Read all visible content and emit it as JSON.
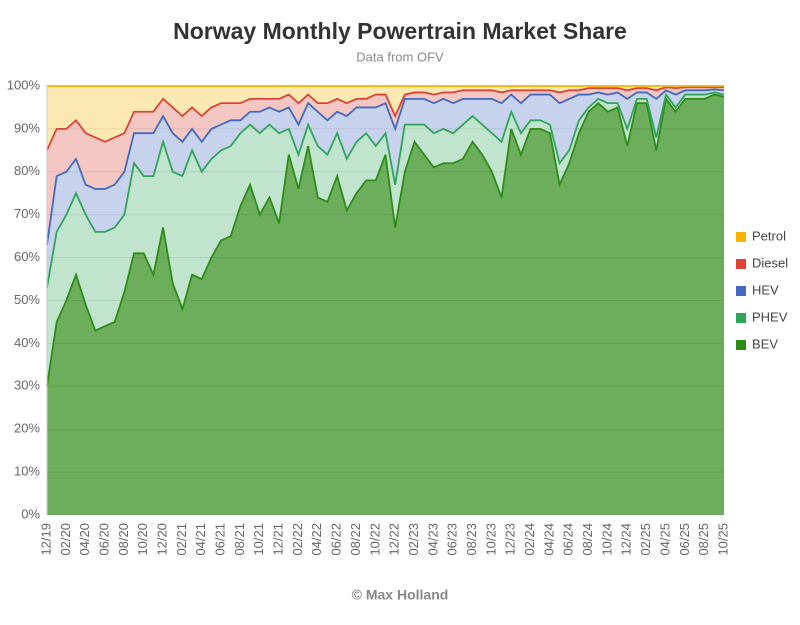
{
  "chart_data": {
    "type": "stacked-area",
    "title": "Norway Monthly Powertrain Market Share",
    "subtitle": "Data from OFV",
    "footer": "© Max Holland",
    "categories": [
      "12/19",
      null,
      "02/20",
      null,
      "04/20",
      null,
      "06/20",
      null,
      "08/20",
      null,
      "10/20",
      null,
      "12/20",
      null,
      "02/21",
      null,
      "04/21",
      null,
      "06/21",
      null,
      "08/21",
      null,
      "10/21",
      null,
      "12/21",
      null,
      "02/22",
      null,
      "04/22",
      null,
      "06/22",
      null,
      "08/22",
      null,
      "10/22",
      null,
      "12/22",
      null,
      "02/23",
      null,
      "04/23",
      null,
      "06/23",
      null,
      "08/23",
      null,
      "10/23",
      null,
      "12/23",
      null,
      "02/24",
      null,
      "04/24",
      null,
      "06/24",
      null,
      "08/24",
      null,
      "10/24",
      null,
      "12/24",
      null,
      "02/25",
      null,
      "04/25",
      null,
      "06/25",
      null,
      "08/25",
      null,
      "10/25"
    ],
    "series": [
      {
        "name": "Petrol",
        "color": "#f4b400",
        "values": [
          15,
          10,
          10,
          8,
          11,
          12,
          13,
          12,
          11,
          6,
          6,
          6,
          3,
          5,
          7,
          5,
          7,
          5,
          4,
          4,
          4,
          3,
          3,
          3,
          3,
          2,
          4,
          2,
          4,
          4,
          3,
          4,
          3,
          3,
          2,
          2,
          7,
          2,
          1.5,
          1.5,
          2,
          1.5,
          1.5,
          1,
          1,
          1,
          1,
          1.5,
          1,
          1,
          1,
          1,
          1,
          1.5,
          1,
          1,
          0.5,
          0.5,
          0.5,
          0.5,
          1,
          0.5,
          0.5,
          1,
          0.3,
          0.5,
          0.3,
          0.3,
          0.3,
          0.3,
          0.3
        ]
      },
      {
        "name": "Diesel",
        "color": "#db4437",
        "values": [
          22,
          11,
          10,
          9,
          12,
          12,
          11,
          11,
          9,
          5,
          5,
          5,
          4,
          6,
          6,
          5,
          6,
          5,
          5,
          4,
          4,
          3,
          3,
          2,
          3,
          3,
          5,
          2,
          2,
          4,
          3,
          3,
          2,
          2,
          3,
          2,
          3,
          1,
          1.5,
          1.5,
          2,
          1.5,
          2.5,
          2,
          2,
          2,
          2,
          2.5,
          1,
          3,
          1,
          1,
          1,
          2.5,
          2,
          1,
          1.5,
          1,
          1.5,
          1,
          2,
          1,
          1,
          2,
          0.7,
          1.5,
          0.7,
          0.7,
          0.7,
          0.5,
          0.7
        ]
      },
      {
        "name": "HEV",
        "color": "#4469c1",
        "values": [
          10,
          13,
          10,
          8,
          7,
          10,
          10,
          10,
          10,
          7,
          10,
          10,
          6,
          9,
          8,
          5,
          7,
          7,
          6,
          6,
          3,
          3,
          5,
          4,
          5,
          5,
          7,
          5,
          8,
          8,
          5,
          10,
          8,
          6,
          9,
          7,
          13,
          6,
          6,
          6,
          7,
          7,
          7,
          6,
          4,
          6,
          8,
          9,
          4,
          7,
          6,
          6,
          7,
          14,
          12,
          6,
          3,
          1.5,
          2,
          2.5,
          7,
          1.5,
          1.5,
          9,
          1,
          3,
          1,
          1,
          1,
          0.7,
          1
        ]
      },
      {
        "name": "PHEV",
        "color": "#2fa55a",
        "values": [
          23,
          21,
          20,
          19,
          21,
          23,
          22,
          22,
          18,
          21,
          18,
          23,
          20,
          26,
          31,
          29,
          25,
          23,
          21,
          21,
          17,
          14,
          19,
          17,
          21,
          6,
          8,
          5,
          12,
          11,
          10,
          12,
          12,
          11,
          8,
          5,
          10,
          11,
          4,
          7,
          8,
          8,
          7,
          8,
          6,
          7,
          9,
          13,
          4,
          5,
          2,
          2,
          2,
          5,
          3,
          3,
          1,
          1,
          2,
          1,
          4,
          1,
          1,
          3,
          1,
          1,
          1,
          1,
          1,
          0.5,
          0.5
        ]
      },
      {
        "name": "BEV",
        "color": "#2e8b17",
        "values": [
          30,
          45,
          50,
          56,
          49,
          43,
          44,
          45,
          52,
          61,
          61,
          56,
          67,
          54,
          48,
          56,
          55,
          60,
          64,
          65,
          72,
          77,
          70,
          74,
          68,
          84,
          76,
          86,
          74,
          73,
          79,
          71,
          75,
          78,
          78,
          84,
          67,
          80,
          87,
          84,
          81,
          82,
          82,
          83,
          87,
          84,
          80,
          74,
          90,
          84,
          90,
          90,
          89,
          77,
          82,
          89,
          94,
          96,
          94,
          95,
          86,
          96,
          96,
          85,
          97,
          94,
          97,
          97,
          97,
          98,
          97.5
        ]
      }
    ],
    "ylim": [
      0,
      100
    ],
    "yticks": [
      {
        "value": 0,
        "label": "0%"
      },
      {
        "value": 10,
        "label": "10%"
      },
      {
        "value": 20,
        "label": "20%"
      },
      {
        "value": 30,
        "label": "30%"
      },
      {
        "value": 40,
        "label": "40%"
      },
      {
        "value": 50,
        "label": "50%"
      },
      {
        "value": 60,
        "label": "60%"
      },
      {
        "value": 70,
        "label": "70%"
      },
      {
        "value": 80,
        "label": "80%"
      },
      {
        "value": 90,
        "label": "90%"
      },
      {
        "value": 100,
        "label": "100%"
      }
    ],
    "grid": true,
    "legend": "right"
  }
}
